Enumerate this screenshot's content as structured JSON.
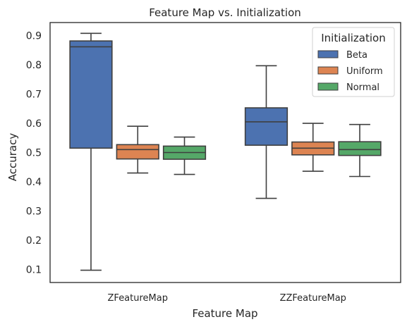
{
  "chart_data": {
    "type": "box",
    "title": "Feature Map vs. Initialization",
    "xlabel": "Feature Map",
    "ylabel": "Accuracy",
    "categories": [
      "ZFeatureMap",
      "ZZFeatureMap"
    ],
    "ylim": [
      0.055,
      0.945
    ],
    "yticks": [
      0.1,
      0.2,
      0.3,
      0.4,
      0.5,
      0.6,
      0.7,
      0.8,
      0.9
    ],
    "ytick_labels": [
      "0.1",
      "0.2",
      "0.3",
      "0.4",
      "0.5",
      "0.6",
      "0.7",
      "0.8",
      "0.9"
    ],
    "grid": false,
    "legend": {
      "title": "Initialization",
      "placement": "top-right"
    },
    "series": [
      {
        "name": "Beta",
        "color": "#4c72b0",
        "boxes": [
          {
            "min": 0.097,
            "q1": 0.515,
            "median": 0.862,
            "q3": 0.882,
            "max": 0.908
          },
          {
            "min": 0.343,
            "q1": 0.525,
            "median": 0.605,
            "q3": 0.653,
            "max": 0.797
          }
        ]
      },
      {
        "name": "Uniform",
        "color": "#dd8452",
        "boxes": [
          {
            "min": 0.43,
            "q1": 0.478,
            "median": 0.51,
            "q3": 0.527,
            "max": 0.59
          },
          {
            "min": 0.436,
            "q1": 0.492,
            "median": 0.515,
            "q3": 0.536,
            "max": 0.6
          }
        ]
      },
      {
        "name": "Normal",
        "color": "#55a868",
        "boxes": [
          {
            "min": 0.425,
            "q1": 0.477,
            "median": 0.5,
            "q3": 0.522,
            "max": 0.553
          },
          {
            "min": 0.418,
            "q1": 0.49,
            "median": 0.51,
            "q3": 0.537,
            "max": 0.596
          }
        ]
      }
    ]
  }
}
